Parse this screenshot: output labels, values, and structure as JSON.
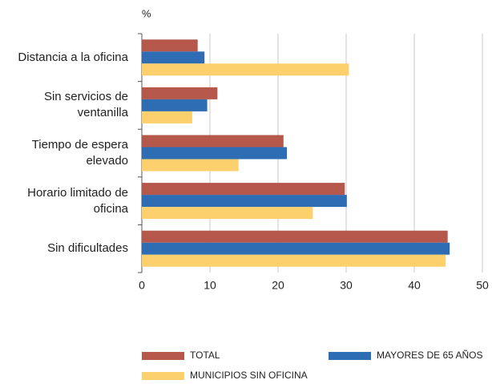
{
  "chart_data": {
    "type": "bar",
    "orientation": "horizontal",
    "unit_label": "%",
    "categories": [
      "Distancia a la oficina",
      "Sin servicios de ventanilla",
      "Tiempo de espera elevado",
      "Horario limitado de oficina",
      "Sin dificultades"
    ],
    "series": [
      {
        "name": "TOTAL",
        "color": "#b5574a",
        "values": [
          8.2,
          11.1,
          20.8,
          29.8,
          44.9
        ]
      },
      {
        "name": "MAYORES DE 65 AÑOS",
        "color": "#2e6db4",
        "values": [
          9.2,
          9.6,
          21.3,
          30.1,
          45.2
        ]
      },
      {
        "name": "MUNICIPIOS SIN OFICINA",
        "color": "#fcd06c",
        "values": [
          30.4,
          7.4,
          14.2,
          25.1,
          44.6
        ]
      }
    ],
    "xlim": [
      0,
      50
    ],
    "xticks": [
      0,
      10,
      20,
      30,
      40,
      50
    ],
    "grid": true
  }
}
